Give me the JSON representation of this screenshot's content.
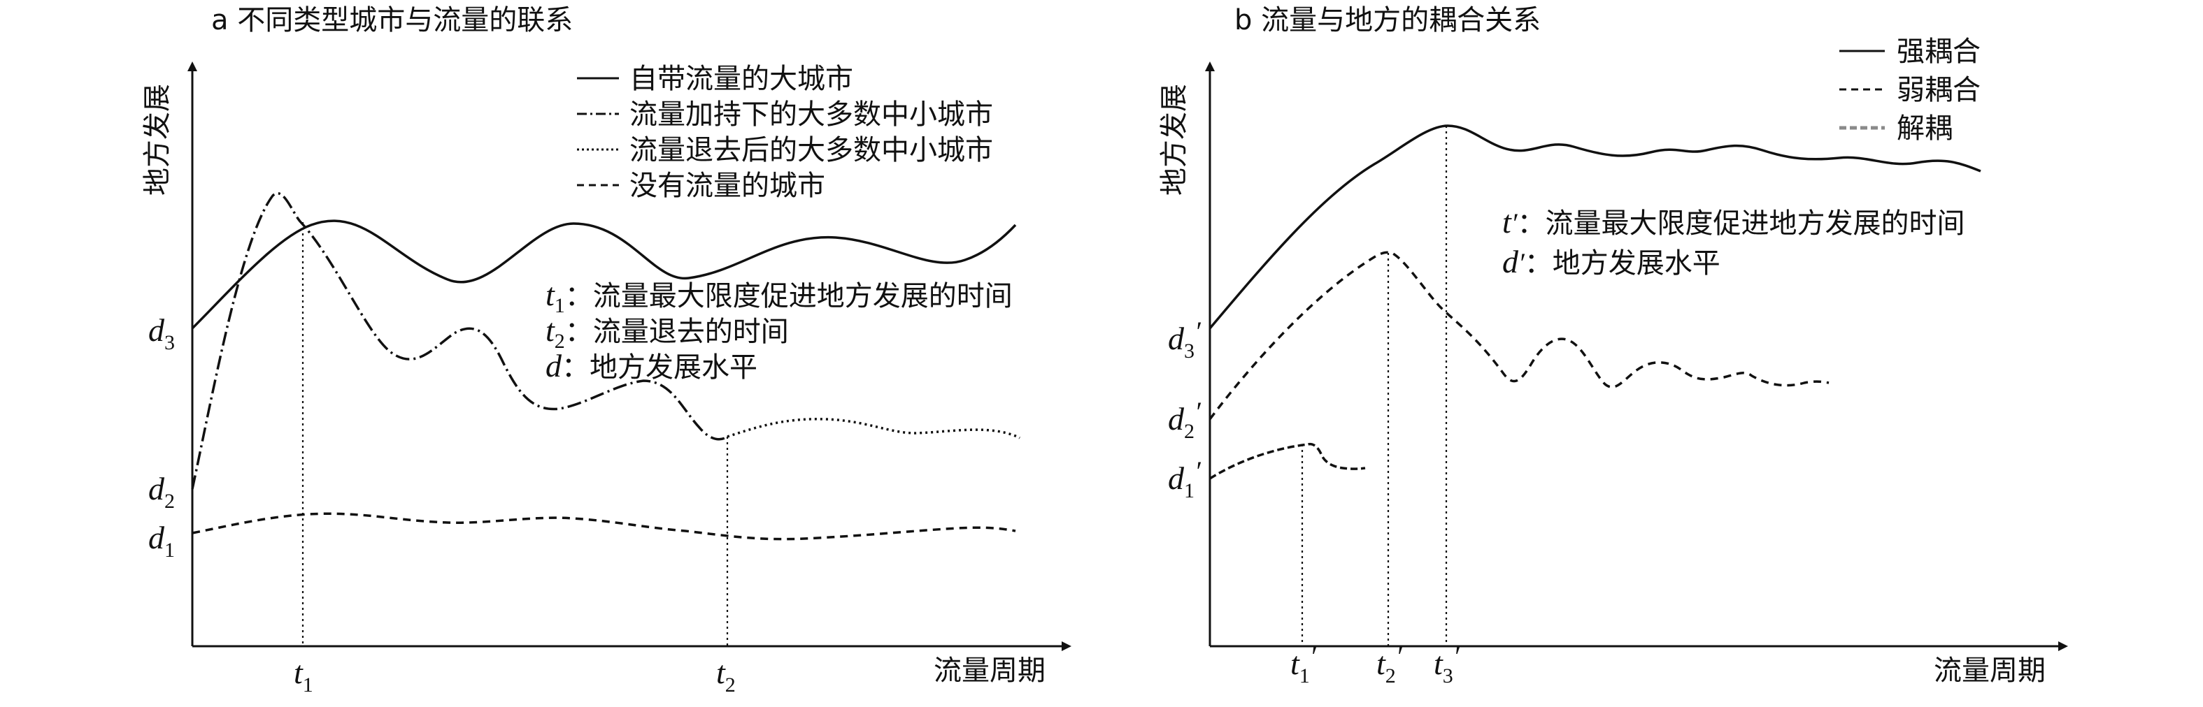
{
  "panel_a": {
    "title": "a 不同类型城市与流量的联系",
    "y_axis_label": "地方发展",
    "x_axis_label": "流量周期",
    "legend": [
      {
        "label": "自带流量的大城市",
        "style": "solid"
      },
      {
        "label": "流量加持下的大多数中小城市",
        "style": "dashdot"
      },
      {
        "label": "流量退去后的大多数中小城市",
        "style": "dotted"
      },
      {
        "label": "没有流量的城市",
        "style": "dashed"
      }
    ],
    "annotations": [
      {
        "sym": "t",
        "sub": "1",
        "sep": "：",
        "text": "流量最大限度促进地方发展的时间"
      },
      {
        "sym": "t",
        "sub": "2",
        "sep": "：",
        "text": "流量退去的时间"
      },
      {
        "sym": "d",
        "sub": "",
        "sep": "：",
        "text": "地方发展水平"
      }
    ],
    "y_ticks": [
      {
        "sym": "d",
        "sub": "3"
      },
      {
        "sym": "d",
        "sub": "2"
      },
      {
        "sym": "d",
        "sub": "1"
      }
    ],
    "x_ticks": [
      {
        "sym": "t",
        "sub": "1"
      },
      {
        "sym": "t",
        "sub": "2"
      }
    ]
  },
  "panel_b": {
    "title": "b 流量与地方的耦合关系",
    "y_axis_label": "地方发展",
    "x_axis_label": "流量周期",
    "legend": [
      {
        "label": "强耦合",
        "style": "solid",
        "color": "#111111"
      },
      {
        "label": "弱耦合",
        "style": "dashed",
        "color": "#111111"
      },
      {
        "label": "解耦",
        "style": "dashed-gray",
        "color": "#8a8a8a"
      }
    ],
    "annotations": [
      {
        "sym": "t",
        "prime": "′",
        "sep": "：",
        "text": "流量最大限度促进地方发展的时间"
      },
      {
        "sym": "d",
        "prime": "′",
        "sep": "：",
        "text": "地方发展水平"
      }
    ],
    "y_ticks": [
      {
        "sym": "d",
        "sub": "3",
        "prime": "′"
      },
      {
        "sym": "d",
        "sub": "2",
        "prime": "′"
      },
      {
        "sym": "d",
        "sub": "1",
        "prime": "′"
      }
    ],
    "x_ticks": [
      {
        "sym": "t",
        "sub": "1",
        "prime": "′"
      },
      {
        "sym": "t",
        "sub": "2",
        "prime": "′"
      },
      {
        "sym": "t",
        "sub": "3",
        "prime": "′"
      }
    ]
  }
}
